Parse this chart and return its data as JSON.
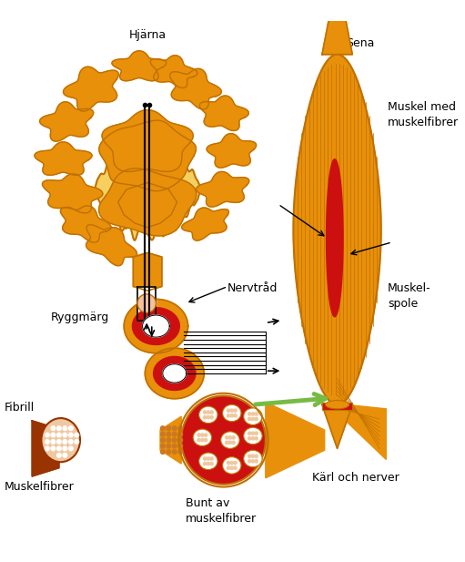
{
  "background_color": "#ffffff",
  "labels": {
    "hjarna": "Hjärna",
    "sena": "Sena",
    "muskel_med": "Muskel med\nmuskelfibrer",
    "nervtrad": "Nervtråd",
    "ryggmarg": "Ryggmärg",
    "muskelspole": "Muskel-\nspole",
    "fibrill": "Fibrill",
    "muskelfibrer": "Muskelfibrer",
    "bunt_av": "Bunt av\nmuskelfibrer",
    "karl_och_nerver": "Kärl och nerver"
  },
  "colors": {
    "brain_yellow": "#F5D060",
    "brain_orange": "#E8900A",
    "brain_outline": "#C07000",
    "muscle_orange": "#E8900A",
    "muscle_light": "#F5B040",
    "muscle_red": "#CC1010",
    "spine_red": "#CC1010",
    "spine_orange": "#E8900A",
    "arrow_green": "#77BB44",
    "fibril_pink": "#F0C8A0",
    "fibril_dark": "#993300",
    "fibril_mid": "#CC7722",
    "white": "#FFFFFF",
    "black": "#000000",
    "peach": "#F5C0A0"
  }
}
